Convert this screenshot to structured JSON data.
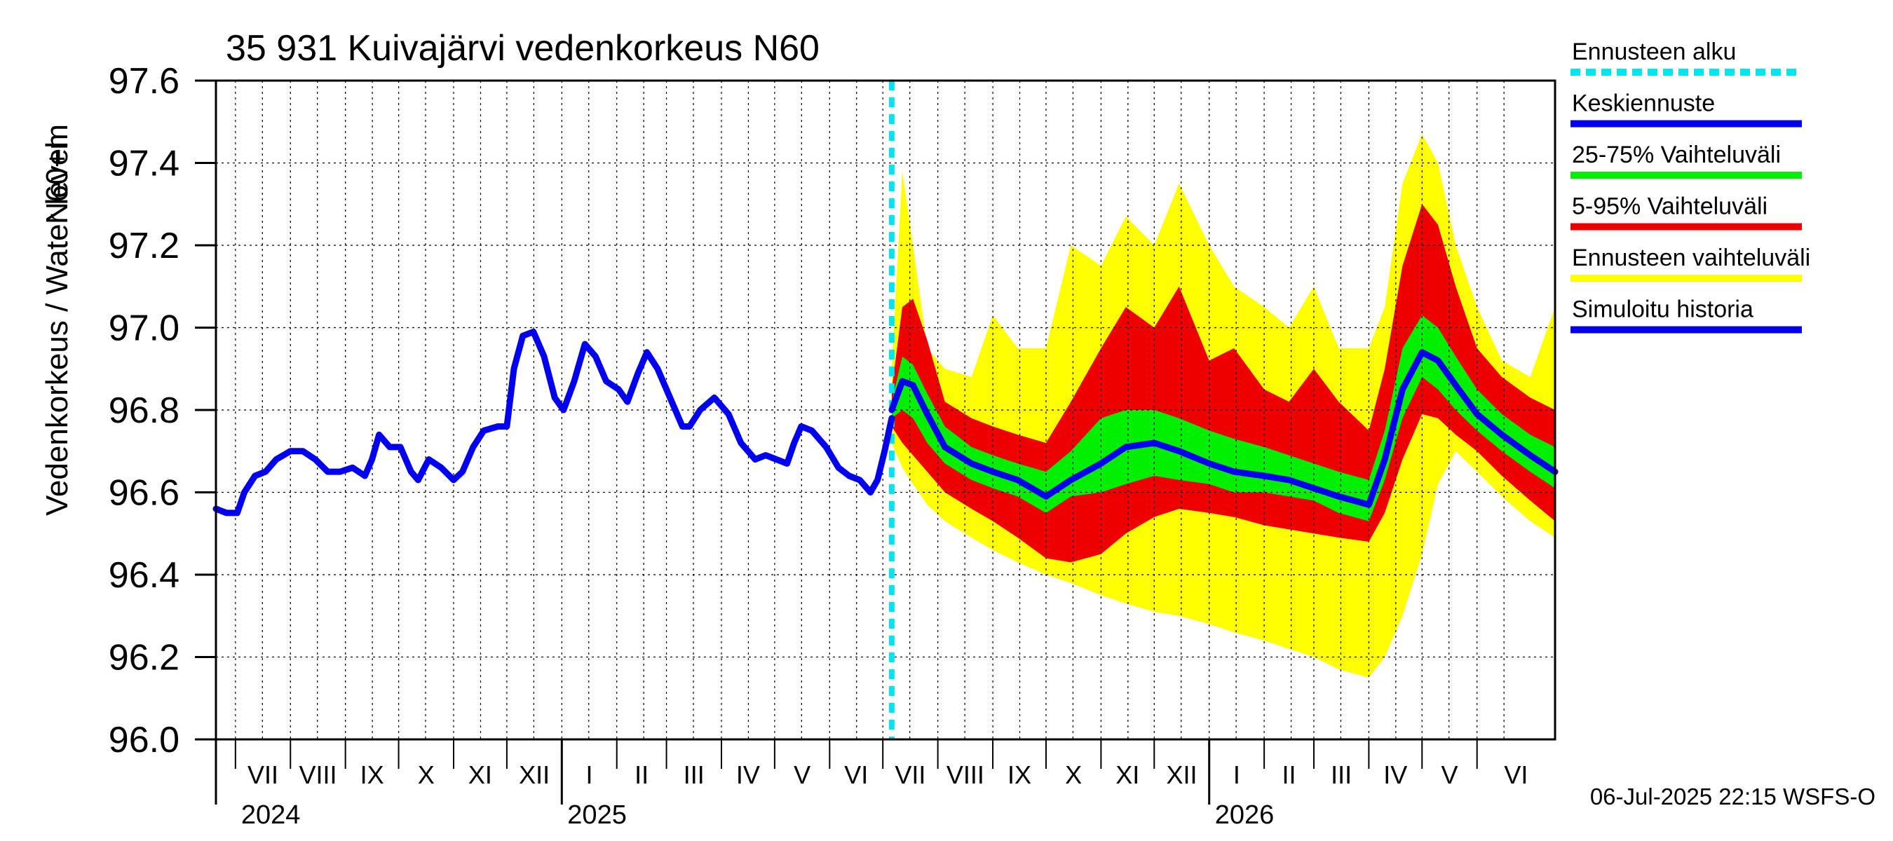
{
  "chart_data": {
    "type": "area",
    "title": "35 931 Kuivajärvi vedenkorkeus N60",
    "ylabel_lines": [
      "Vedenkorkeus / Water level",
      "N60+m"
    ],
    "ylim": [
      96.0,
      97.6
    ],
    "yticks": [
      "96.0",
      "96.2",
      "96.4",
      "96.6",
      "96.8",
      "97.0",
      "97.2",
      "97.4",
      "97.6"
    ],
    "xlim": [
      "2024-06-20",
      "2026-07-15"
    ],
    "grid": true,
    "forecast_start": "2025-07-06",
    "months": [
      {
        "label": "VII",
        "start": "2024-07-01"
      },
      {
        "label": "VIII",
        "start": "2024-08-01"
      },
      {
        "label": "IX",
        "start": "2024-09-01"
      },
      {
        "label": "X",
        "start": "2024-10-01"
      },
      {
        "label": "XI",
        "start": "2024-11-01"
      },
      {
        "label": "XII",
        "start": "2024-12-01"
      },
      {
        "label": "I",
        "start": "2025-01-01"
      },
      {
        "label": "II",
        "start": "2025-02-01"
      },
      {
        "label": "III",
        "start": "2025-03-01"
      },
      {
        "label": "IV",
        "start": "2025-04-01"
      },
      {
        "label": "V",
        "start": "2025-05-01"
      },
      {
        "label": "VI",
        "start": "2025-06-01"
      },
      {
        "label": "VII",
        "start": "2025-07-01"
      },
      {
        "label": "VIII",
        "start": "2025-08-01"
      },
      {
        "label": "IX",
        "start": "2025-09-01"
      },
      {
        "label": "X",
        "start": "2025-10-01"
      },
      {
        "label": "XI",
        "start": "2025-11-01"
      },
      {
        "label": "XII",
        "start": "2025-12-01"
      },
      {
        "label": "I",
        "start": "2026-01-01"
      },
      {
        "label": "II",
        "start": "2026-02-01"
      },
      {
        "label": "III",
        "start": "2026-03-01"
      },
      {
        "label": "IV",
        "start": "2026-04-01"
      },
      {
        "label": "V",
        "start": "2026-05-01"
      },
      {
        "label": "VI",
        "start": "2026-06-01"
      }
    ],
    "years": [
      {
        "label": "2024",
        "start": "2024-07-01"
      },
      {
        "label": "2025",
        "start": "2025-01-01"
      },
      {
        "label": "2026",
        "start": "2026-01-01"
      }
    ],
    "legend": [
      {
        "label": "Ennusteen alku",
        "color": "#00e5ee",
        "dashed": true
      },
      {
        "label": "Keskiennuste",
        "color": "#0000ee"
      },
      {
        "label": "25-75% Vaihteluväli",
        "color": "#00ee00"
      },
      {
        "label": "5-95% Vaihteluväli",
        "color": "#ee0000"
      },
      {
        "label": "Ennusteen vaihteluväli",
        "color": "#ffff00"
      },
      {
        "label": "Simuloitu historia",
        "color": "#0000ee"
      }
    ],
    "colors": {
      "history": "#0000ee",
      "median": "#0000ee",
      "p25_75": "#00ee00",
      "p5_95": "#ee0000",
      "full_range": "#ffff00",
      "forecast_start": "#00e5ee"
    },
    "history": [
      [
        "2024-06-20",
        96.56
      ],
      [
        "2024-06-26",
        96.55
      ],
      [
        "2024-07-02",
        96.55
      ],
      [
        "2024-07-06",
        96.6
      ],
      [
        "2024-07-12",
        96.64
      ],
      [
        "2024-07-18",
        96.65
      ],
      [
        "2024-07-24",
        96.68
      ],
      [
        "2024-08-01",
        96.7
      ],
      [
        "2024-08-08",
        96.7
      ],
      [
        "2024-08-15",
        96.68
      ],
      [
        "2024-08-22",
        96.65
      ],
      [
        "2024-08-29",
        96.65
      ],
      [
        "2024-09-05",
        96.66
      ],
      [
        "2024-09-12",
        96.64
      ],
      [
        "2024-09-16",
        96.68
      ],
      [
        "2024-09-20",
        96.74
      ],
      [
        "2024-09-26",
        96.71
      ],
      [
        "2024-10-02",
        96.71
      ],
      [
        "2024-10-08",
        96.65
      ],
      [
        "2024-10-12",
        96.63
      ],
      [
        "2024-10-18",
        96.68
      ],
      [
        "2024-10-25",
        96.66
      ],
      [
        "2024-11-01",
        96.63
      ],
      [
        "2024-11-06",
        96.65
      ],
      [
        "2024-11-12",
        96.71
      ],
      [
        "2024-11-18",
        96.75
      ],
      [
        "2024-11-26",
        96.76
      ],
      [
        "2024-12-01",
        96.76
      ],
      [
        "2024-12-05",
        96.9
      ],
      [
        "2024-12-10",
        96.98
      ],
      [
        "2024-12-16",
        96.99
      ],
      [
        "2024-12-22",
        96.93
      ],
      [
        "2024-12-28",
        96.83
      ],
      [
        "2025-01-02",
        96.8
      ],
      [
        "2025-01-08",
        96.87
      ],
      [
        "2025-01-14",
        96.96
      ],
      [
        "2025-01-20",
        96.93
      ],
      [
        "2025-01-26",
        96.87
      ],
      [
        "2025-02-02",
        96.85
      ],
      [
        "2025-02-07",
        96.82
      ],
      [
        "2025-02-13",
        96.89
      ],
      [
        "2025-02-18",
        96.94
      ],
      [
        "2025-02-24",
        96.9
      ],
      [
        "2025-03-04",
        96.82
      ],
      [
        "2025-03-10",
        96.76
      ],
      [
        "2025-03-14",
        96.76
      ],
      [
        "2025-03-20",
        96.8
      ],
      [
        "2025-03-28",
        96.83
      ],
      [
        "2025-04-05",
        96.79
      ],
      [
        "2025-04-12",
        96.72
      ],
      [
        "2025-04-20",
        96.68
      ],
      [
        "2025-04-26",
        96.69
      ],
      [
        "2025-05-02",
        96.68
      ],
      [
        "2025-05-08",
        96.67
      ],
      [
        "2025-05-12",
        96.72
      ],
      [
        "2025-05-16",
        96.76
      ],
      [
        "2025-05-22",
        96.75
      ],
      [
        "2025-05-30",
        96.71
      ],
      [
        "2025-06-06",
        96.66
      ],
      [
        "2025-06-12",
        96.64
      ],
      [
        "2025-06-18",
        96.63
      ],
      [
        "2025-06-24",
        96.6
      ],
      [
        "2025-06-28",
        96.63
      ],
      [
        "2025-07-02",
        96.7
      ],
      [
        "2025-07-06",
        96.78
      ]
    ],
    "forecast": [
      {
        "date": "2025-07-06",
        "min": 96.72,
        "p5": 96.76,
        "p25": 96.78,
        "median": 96.8,
        "p75": 96.82,
        "p95": 96.85,
        "max": 96.9
      },
      {
        "date": "2025-07-12",
        "min": 96.66,
        "p5": 96.72,
        "p25": 96.8,
        "median": 96.87,
        "p75": 96.93,
        "p95": 97.05,
        "max": 97.38
      },
      {
        "date": "2025-07-18",
        "min": 96.62,
        "p5": 96.69,
        "p25": 96.78,
        "median": 96.86,
        "p75": 96.91,
        "p95": 97.07,
        "max": 97.2
      },
      {
        "date": "2025-07-26",
        "min": 96.57,
        "p5": 96.65,
        "p25": 96.72,
        "median": 96.79,
        "p75": 96.84,
        "p95": 96.97,
        "max": 96.95
      },
      {
        "date": "2025-08-05",
        "min": 96.53,
        "p5": 96.6,
        "p25": 96.67,
        "median": 96.71,
        "p75": 96.76,
        "p95": 96.82,
        "max": 96.9
      },
      {
        "date": "2025-08-20",
        "min": 96.49,
        "p5": 96.56,
        "p25": 96.63,
        "median": 96.67,
        "p75": 96.71,
        "p95": 96.78,
        "max": 96.88
      },
      {
        "date": "2025-09-01",
        "min": 96.46,
        "p5": 96.53,
        "p25": 96.61,
        "median": 96.65,
        "p75": 96.69,
        "p95": 96.76,
        "max": 97.03
      },
      {
        "date": "2025-09-15",
        "min": 96.43,
        "p5": 96.49,
        "p25": 96.59,
        "median": 96.63,
        "p75": 96.67,
        "p95": 96.74,
        "max": 96.95
      },
      {
        "date": "2025-10-01",
        "min": 96.4,
        "p5": 96.44,
        "p25": 96.55,
        "median": 96.59,
        "p75": 96.65,
        "p95": 96.72,
        "max": 96.95
      },
      {
        "date": "2025-10-15",
        "min": 96.38,
        "p5": 96.43,
        "p25": 96.59,
        "median": 96.63,
        "p75": 96.7,
        "p95": 96.82,
        "max": 97.2
      },
      {
        "date": "2025-11-01",
        "min": 96.35,
        "p5": 96.45,
        "p25": 96.6,
        "median": 96.67,
        "p75": 96.78,
        "p95": 96.95,
        "max": 97.15
      },
      {
        "date": "2025-11-15",
        "min": 96.33,
        "p5": 96.5,
        "p25": 96.62,
        "median": 96.71,
        "p75": 96.8,
        "p95": 97.05,
        "max": 97.27
      },
      {
        "date": "2025-12-01",
        "min": 96.31,
        "p5": 96.54,
        "p25": 96.64,
        "median": 96.72,
        "p75": 96.8,
        "p95": 97.0,
        "max": 97.2
      },
      {
        "date": "2025-12-15",
        "min": 96.3,
        "p5": 96.56,
        "p25": 96.63,
        "median": 96.7,
        "p75": 96.78,
        "p95": 97.1,
        "max": 97.35
      },
      {
        "date": "2026-01-01",
        "min": 96.28,
        "p5": 96.55,
        "p25": 96.62,
        "median": 96.67,
        "p75": 96.75,
        "p95": 96.92,
        "max": 97.2
      },
      {
        "date": "2026-01-15",
        "min": 96.26,
        "p5": 96.54,
        "p25": 96.6,
        "median": 96.65,
        "p75": 96.73,
        "p95": 96.95,
        "max": 97.1
      },
      {
        "date": "2026-02-01",
        "min": 96.24,
        "p5": 96.52,
        "p25": 96.6,
        "median": 96.64,
        "p75": 96.71,
        "p95": 96.85,
        "max": 97.05
      },
      {
        "date": "2026-02-15",
        "min": 96.22,
        "p5": 96.51,
        "p25": 96.59,
        "median": 96.63,
        "p75": 96.69,
        "p95": 96.82,
        "max": 97.0
      },
      {
        "date": "2026-03-01",
        "min": 96.2,
        "p5": 96.5,
        "p25": 96.58,
        "median": 96.61,
        "p75": 96.67,
        "p95": 96.9,
        "max": 97.1
      },
      {
        "date": "2026-03-15",
        "min": 96.17,
        "p5": 96.49,
        "p25": 96.55,
        "median": 96.59,
        "p75": 96.65,
        "p95": 96.82,
        "max": 96.95
      },
      {
        "date": "2026-04-01",
        "min": 96.15,
        "p5": 96.48,
        "p25": 96.53,
        "median": 96.57,
        "p75": 96.63,
        "p95": 96.75,
        "max": 96.95
      },
      {
        "date": "2026-04-10",
        "min": 96.2,
        "p5": 96.55,
        "p25": 96.63,
        "median": 96.68,
        "p75": 96.75,
        "p95": 96.9,
        "max": 97.05
      },
      {
        "date": "2026-04-20",
        "min": 96.3,
        "p5": 96.68,
        "p25": 96.78,
        "median": 96.85,
        "p75": 96.95,
        "p95": 97.15,
        "max": 97.35
      },
      {
        "date": "2026-05-01",
        "min": 96.45,
        "p5": 96.79,
        "p25": 96.88,
        "median": 96.94,
        "p75": 97.03,
        "p95": 97.3,
        "max": 97.47
      },
      {
        "date": "2026-05-10",
        "min": 96.62,
        "p5": 96.78,
        "p25": 96.85,
        "median": 96.92,
        "p75": 97.0,
        "p95": 97.25,
        "max": 97.4
      },
      {
        "date": "2026-05-20",
        "min": 96.7,
        "p5": 96.74,
        "p25": 96.8,
        "median": 96.86,
        "p75": 96.93,
        "p95": 97.1,
        "max": 97.2
      },
      {
        "date": "2026-06-01",
        "min": 96.65,
        "p5": 96.7,
        "p25": 96.75,
        "median": 96.79,
        "p75": 96.85,
        "p95": 96.95,
        "max": 97.05
      },
      {
        "date": "2026-06-15",
        "min": 96.59,
        "p5": 96.64,
        "p25": 96.7,
        "median": 96.74,
        "p75": 96.79,
        "p95": 96.88,
        "max": 96.92
      },
      {
        "date": "2026-07-01",
        "min": 96.53,
        "p5": 96.58,
        "p25": 96.65,
        "median": 96.69,
        "p75": 96.74,
        "p95": 96.83,
        "max": 96.88
      },
      {
        "date": "2026-07-15",
        "min": 96.49,
        "p5": 96.53,
        "p25": 96.61,
        "median": 96.65,
        "p75": 96.71,
        "p95": 96.8,
        "max": 97.05
      }
    ],
    "footer": "06-Jul-2025 22:15 WSFS-O"
  }
}
